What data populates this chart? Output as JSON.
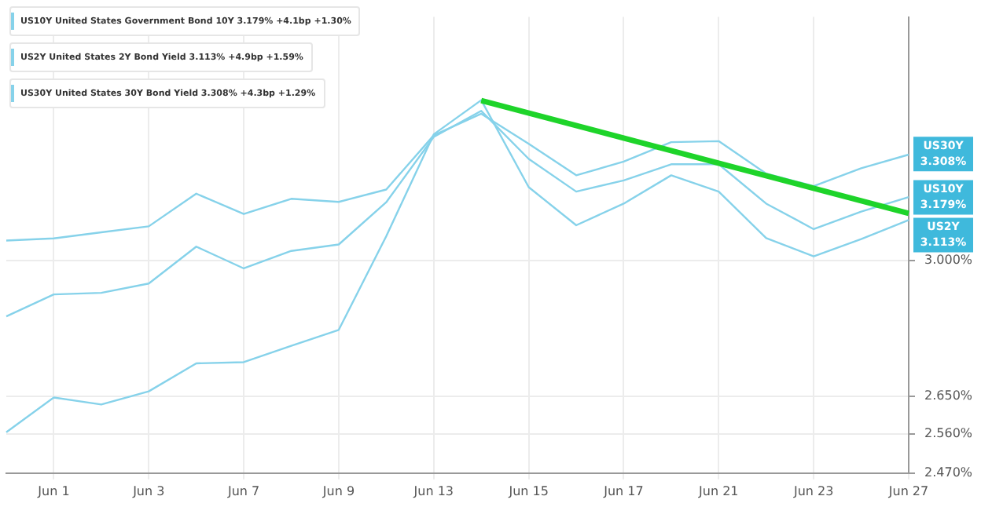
{
  "chart_data": {
    "type": "line",
    "categories": [
      null,
      "Jun 1",
      null,
      "Jun 3",
      null,
      "Jun 7",
      null,
      "Jun 9",
      null,
      "Jun 13",
      null,
      "Jun 15",
      null,
      "Jun 17",
      null,
      "Jun 21",
      null,
      "Jun 23",
      null,
      "Jun 27"
    ],
    "series": [
      {
        "name": "US10Y  United States Government Bond 10Y  3.179% +4.1bp +1.30%",
        "color": "#86d2ea",
        "values": [
          2.851,
          2.909,
          2.913,
          2.938,
          3.039,
          2.979,
          3.027,
          3.045,
          3.165,
          3.36,
          3.441,
          3.293,
          3.196,
          3.229,
          3.277,
          3.277,
          3.161,
          3.088,
          3.138,
          3.18
        ]
      },
      {
        "name": "US2Y  United States 2Y Bond Yield  3.113% +4.9bp +1.59%",
        "color": "#86d2ea",
        "values": [
          2.564,
          2.647,
          2.63,
          2.662,
          2.731,
          2.734,
          2.775,
          2.816,
          3.068,
          3.368,
          3.475,
          3.209,
          3.099,
          3.161,
          3.244,
          3.196,
          3.063,
          3.012,
          3.06,
          3.114
        ]
      },
      {
        "name": "US30Y  United States 30Y Bond Yield  3.308% +4.3bp +1.29%",
        "color": "#86d2ea",
        "values": [
          3.056,
          3.062,
          3.079,
          3.096,
          3.19,
          3.131,
          3.175,
          3.166,
          3.202,
          3.365,
          3.432,
          3.339,
          3.244,
          3.285,
          3.344,
          3.347,
          3.249,
          3.212,
          3.265,
          3.306
        ]
      },
      {
        "type": "line",
        "color": "#1ed42a",
        "values": [
          null,
          null,
          null,
          null,
          null,
          null,
          null,
          null,
          null,
          null,
          3.474,
          null,
          null,
          null,
          null,
          null,
          null,
          null,
          null,
          3.133
        ]
      }
    ],
    "log": true,
    "ylim": [
      2.47,
      3.75
    ],
    "yticks": [
      {
        "value": 2.47,
        "label": "2.470%"
      },
      {
        "value": 2.56,
        "label": "2.560%"
      },
      {
        "value": 2.65,
        "label": "2.650%"
      },
      {
        "value": 3.0,
        "label": "3.000%"
      }
    ],
    "grid": true,
    "legend": "top left",
    "marker": "none",
    "line_style": "solid",
    "annotations": [
      {
        "text": "US30Y\n3.308%",
        "x": "Jun 27",
        "y": 3.308
      },
      {
        "text": "US10Y\n3.179%",
        "x": "Jun 27",
        "y": 3.179
      },
      {
        "text": "US2Y\n3.113%",
        "x": "Jun 27",
        "y": 3.113
      }
    ]
  }
}
